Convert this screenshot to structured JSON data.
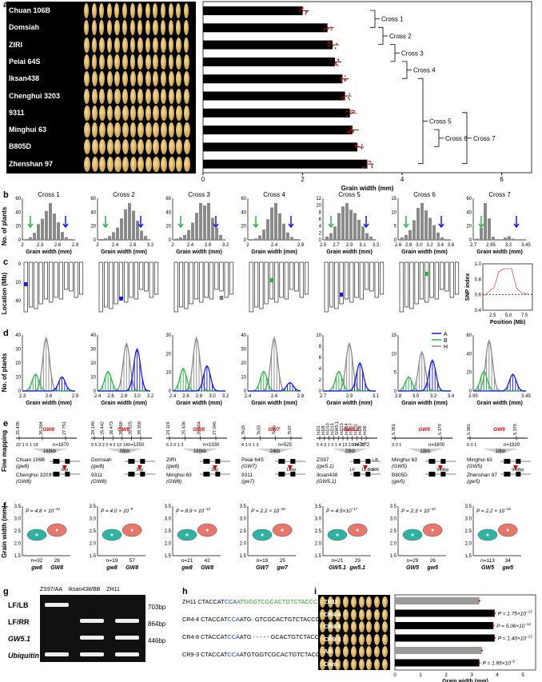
{
  "panel_a": {
    "label": "a",
    "varieties": [
      "Chuan 106B",
      "Domsiah",
      "ZIRI",
      "Peiai 64S",
      "Iksan438",
      "Chenghui 3203",
      "9311",
      "Minghui 63",
      "B805D",
      "Zhenshan 97"
    ],
    "values": [
      2.0,
      2.5,
      2.6,
      2.65,
      2.8,
      2.85,
      2.95,
      3.0,
      3.1,
      3.3
    ],
    "x_ticks": [
      "0",
      "2",
      "4",
      "6"
    ],
    "xlabel": "Grain width (mm)",
    "xlim": [
      0,
      6.6
    ],
    "crosses": [
      "Cross 1",
      "Cross 2",
      "Cross 3",
      "Cross 4",
      "Cross 5",
      "Cross 6",
      "Cross 7"
    ]
  },
  "panel_b": {
    "label": "b",
    "ylabel": "No. of plants",
    "xlabel": "Grain width (mm)",
    "crosses": [
      {
        "title": "Cross 1",
        "xt": [
          "2",
          "2.3",
          "2.6",
          "2.9"
        ],
        "yt": [
          "0",
          "20",
          "40",
          "60"
        ],
        "bars": [
          1,
          3,
          8,
          18,
          24,
          33,
          42,
          30,
          20,
          9,
          3,
          1
        ]
      },
      {
        "title": "Cross 2",
        "xt": [
          "2",
          "2.4",
          "2.8",
          "3.2"
        ],
        "yt": [
          "0",
          "20",
          "40",
          "60"
        ],
        "bars": [
          1,
          2,
          5,
          10,
          16,
          28,
          40,
          48,
          38,
          25,
          12,
          5
        ]
      },
      {
        "title": "Cross 3",
        "xt": [
          "2",
          "2.4",
          "2.8",
          "3.2"
        ],
        "yt": [
          "0",
          "20",
          "40",
          "60"
        ],
        "bars": [
          1,
          2,
          4,
          8,
          14,
          22,
          30,
          28,
          30,
          18,
          10,
          4
        ]
      },
      {
        "title": "Cross 4",
        "xt": [
          "2",
          "2.4",
          "2.8"
        ],
        "yt": [
          "0",
          "20",
          "40",
          "60"
        ],
        "bars": [
          1,
          2,
          6,
          14,
          28,
          44,
          50,
          36,
          22,
          10,
          4,
          1
        ]
      },
      {
        "title": "Cross 5",
        "xt": [
          "2.5",
          "2.7",
          "2.9",
          "3.1",
          "3.3"
        ],
        "yt": [
          "0",
          "2",
          "4",
          "6",
          "8",
          "10",
          "12"
        ],
        "bars": [
          1,
          2,
          4,
          8,
          10,
          11,
          9,
          8,
          6,
          4,
          2,
          1
        ]
      },
      {
        "title": "Cross 6",
        "xt": [
          "2.6",
          "2.8",
          "3.0",
          "3.2",
          "3.4",
          "3.6"
        ],
        "yt": [
          "0",
          "5",
          "10",
          "15"
        ],
        "bars": [
          1,
          2,
          4,
          8,
          13,
          15,
          12,
          9,
          6,
          3,
          1,
          0
        ]
      },
      {
        "title": "Cross 7",
        "xt": [
          "2.7",
          "2.95",
          "3.2",
          "3.45"
        ],
        "yt": [
          "0",
          "20",
          "40",
          "60"
        ],
        "bars": [
          2,
          20,
          60,
          35,
          5,
          0,
          0,
          4,
          6,
          2,
          0,
          0
        ]
      }
    ]
  },
  "panel_c": {
    "label": "c",
    "ylabel": "Location (Mb)",
    "yt": [
      "0",
      "20",
      "40"
    ],
    "snp": {
      "ylabel": "SNP index",
      "xlabel": "Position (Mb)",
      "yt": [
        "0.4",
        "0.6",
        "0.8",
        "1.0"
      ],
      "xt": [
        "2.5",
        "5.0",
        "7.5"
      ]
    }
  },
  "panel_d": {
    "label": "d",
    "ylabel": "No. of plants",
    "xlabel": "Grain width (mm)",
    "legend": [
      "A",
      "B",
      "H"
    ],
    "colors": {
      "A": "#1a1adf",
      "B": "#2fb34a",
      "H": "#8a8a8a"
    },
    "crosses": [
      {
        "xt": [
          "2.3",
          "2.6",
          "2.9"
        ],
        "yt": [
          "0",
          "10",
          "20",
          "30",
          "40"
        ]
      },
      {
        "xt": [
          "2.4",
          "2.6",
          "2.8",
          "3.0",
          "3.2"
        ],
        "yt": [
          "0",
          "10",
          "20",
          "30",
          "40"
        ]
      },
      {
        "xt": [
          "2.4",
          "2.6",
          "2.8",
          "3.0",
          "3.2"
        ],
        "yt": [
          "0",
          "10",
          "20",
          "30"
        ]
      },
      {
        "xt": [
          "2.4",
          "2.6",
          "2.8"
        ],
        "yt": [
          "0",
          "10",
          "20",
          "30",
          "40"
        ]
      },
      {
        "xt": [
          "2.7",
          "2.9",
          "3.1"
        ],
        "yt": [
          "0",
          "2",
          "4",
          "6",
          "8",
          "10"
        ]
      },
      {
        "xt": [
          "2.8",
          "3.0",
          "3.2",
          "3.4"
        ],
        "yt": [
          "0",
          "5",
          "10",
          "15"
        ]
      },
      {
        "xt": [
          "2.95",
          "3.45"
        ],
        "yt": [
          "0",
          "20",
          "40",
          "60"
        ]
      }
    ]
  },
  "panel_e": {
    "label": "e",
    "ylabel": "Fine mapping",
    "maps": [
      {
        "markers": [
          "25.436",
          "26.004",
          "27.751"
        ],
        "gene": "GW8",
        "counts": "22  1  0  1  19",
        "n": "n=1870",
        "kb": "168kb",
        "top": "Chuan 106B",
        "top_g": "(gw8)",
        "bot": "Chenghui 3203",
        "bot_g": "(GW8)",
        "mut": "2bp"
      },
      {
        "markers": [
          "24.140",
          "25.442",
          "26.473",
          "26.509",
          "26.525",
          "28.350"
        ],
        "gene": "GW8",
        "counts": "9  5  3  2  0  4  5  12  14",
        "n": "n=1350",
        "kb": "36kb",
        "top": "Domsiah",
        "top_g": "(gw8)",
        "bot": "9311",
        "bot_g": "(GW8)",
        "mut": "2bp"
      },
      {
        "markers": [
          "23.119",
          "25.436",
          "26.604",
          "27.045"
        ],
        "gene": "GW8",
        "counts": "6  2  0  1  3",
        "n": "n=1330",
        "kb": "168kb",
        "top": "ZIRI",
        "top_g": "(gw8)",
        "bot": "Minghui 63",
        "bot_g": "(GW8)",
        "mut": "2bp"
      },
      {
        "markers": [
          "7k19",
          "7k33",
          "7k35",
          "7k37"
        ],
        "gene": "GW7",
        "counts": "4  1  0  1  3",
        "n": "n=525",
        "kb": "24kb",
        "top": "Peiai 64S",
        "top_g": "(GW7)",
        "bot": "9311",
        "bot_g": "(gw7)",
        "mut": "18bp"
      },
      {
        "markers": [
          "InD1",
          "InD8",
          "InD10",
          "InD15",
          "GW5.1",
          "InD13",
          "InD14",
          "InD17",
          "InD11",
          "InD9",
          "InD6"
        ],
        "gene": "GW5.1",
        "counts": "5  4  3  1  0  1  4  13  23  26  27",
        "n": "n=7872",
        "kb": "28kb",
        "top": "ZS97",
        "top_g": "(gw5.1)",
        "bot": "Iksan438",
        "bot_g": "(GW5.1)",
        "mut": "11.8kb",
        "lb": "LB",
        "lf": "LF",
        "rr": "RR"
      },
      {
        "markers": [
          "5.361",
          "5.379"
        ],
        "gene": "GW5",
        "counts": "3  0  1",
        "n": "n=1600",
        "kb": "18kb",
        "top": "Minghui 63",
        "top_g": "(GW5)",
        "bot": "B805D",
        "bot_g": "(gw5)",
        "mut": "949bp"
      },
      {
        "markers": [
          "5.361",
          "5.379"
        ],
        "gene": "GW5",
        "counts": "6  0  1",
        "n": "n=1920",
        "kb": "18kb",
        "top": "Minghui 63",
        "top_g": "(GW5)",
        "bot": "Zhenshan 97",
        "bot_g": "(gw5)",
        "mut": "949bp"
      }
    ]
  },
  "panel_f": {
    "label": "f",
    "ylabel": "Grain width (mm)",
    "yt": [
      "1.5",
      "2.0",
      "2.5",
      "3.0",
      "3.5"
    ],
    "plots": [
      {
        "p": "P = 4.8 × 10",
        "e": "−13",
        "n1": "n=32",
        "n2": "28",
        "g1": "gw8",
        "g2": "GW8"
      },
      {
        "p": "P = 4.0 × 10",
        "e": "−9",
        "n1": "n=19",
        "n2": "57",
        "g1": "gw8",
        "g2": "GW8"
      },
      {
        "p": "P = 8.9 × 10",
        "e": "−13",
        "n1": "n=21",
        "n2": "42",
        "g1": "gw8",
        "g2": "GW8"
      },
      {
        "p": "P = 2.2 × 10",
        "e": "−16",
        "n1": "n=19",
        "n2": "25",
        "g1": "GW7",
        "g2": "gw7"
      },
      {
        "p": "P = 4.5×10",
        "e": "−17",
        "n1": "n=21",
        "n2": "29",
        "g1": "GW5.1",
        "g2": "gw5.1"
      },
      {
        "p": "P = 2.3 × 10",
        "e": "−10",
        "n1": "n=29",
        "n2": "26",
        "g1": "GW5",
        "g2": "gw5"
      },
      {
        "p": "P = 2.2 × 10",
        "e": "−16",
        "n1": "n=113",
        "n2": "34",
        "g1": "GW5",
        "g2": "gw5"
      }
    ]
  },
  "panel_g": {
    "label": "g",
    "cols": [
      "ZS97/AA",
      "Iksan438/BB",
      "ZH11"
    ],
    "rows": [
      "LF/LB",
      "LF/RR",
      "GW5.1",
      "Ubiquitin"
    ],
    "sizes": [
      "703bp",
      "864bp",
      "446bp"
    ]
  },
  "panel_h": {
    "label": "h",
    "rows": [
      {
        "id": "ZH11",
        "a": "CTACCAT",
        "b": "CCA",
        "c": "ATGGGTCGCACTGTCTACCC"
      },
      {
        "id": "CR4-4",
        "a": "CTACCAT",
        "b": "CCA",
        "c": "ATG- GTCGCACTGTCTACCC"
      },
      {
        "id": "CR4-8",
        "a": "CTACCAT",
        "b": "CCA",
        "c": "ATG - - - - - GCACTGTCTACCC"
      },
      {
        "id": "CR9-3",
        "a": "CTACCAT",
        "b": "CCA",
        "c": "ATGTGGTCGCACTGTCTACCC"
      }
    ]
  },
  "panel_i": {
    "label": "i",
    "rows": [
      "ZH11",
      "CR4-4",
      "CR4-8",
      "CR9-3",
      "AA",
      "Com."
    ],
    "values": [
      3.3,
      3.9,
      3.85,
      3.9,
      3.4,
      3.3
    ],
    "pvals": [
      "",
      "P = 1.75×10",
      "P = 5.06×10",
      "P = 1.40×10",
      "",
      "P = 1.95×10"
    ],
    "pexp": [
      "",
      "−13",
      "−12",
      "−13",
      "",
      "−8"
    ],
    "x_ticks": [
      "0",
      "1",
      "2",
      "3",
      "4",
      "5"
    ],
    "xlabel": "Grain width (mm)"
  }
}
